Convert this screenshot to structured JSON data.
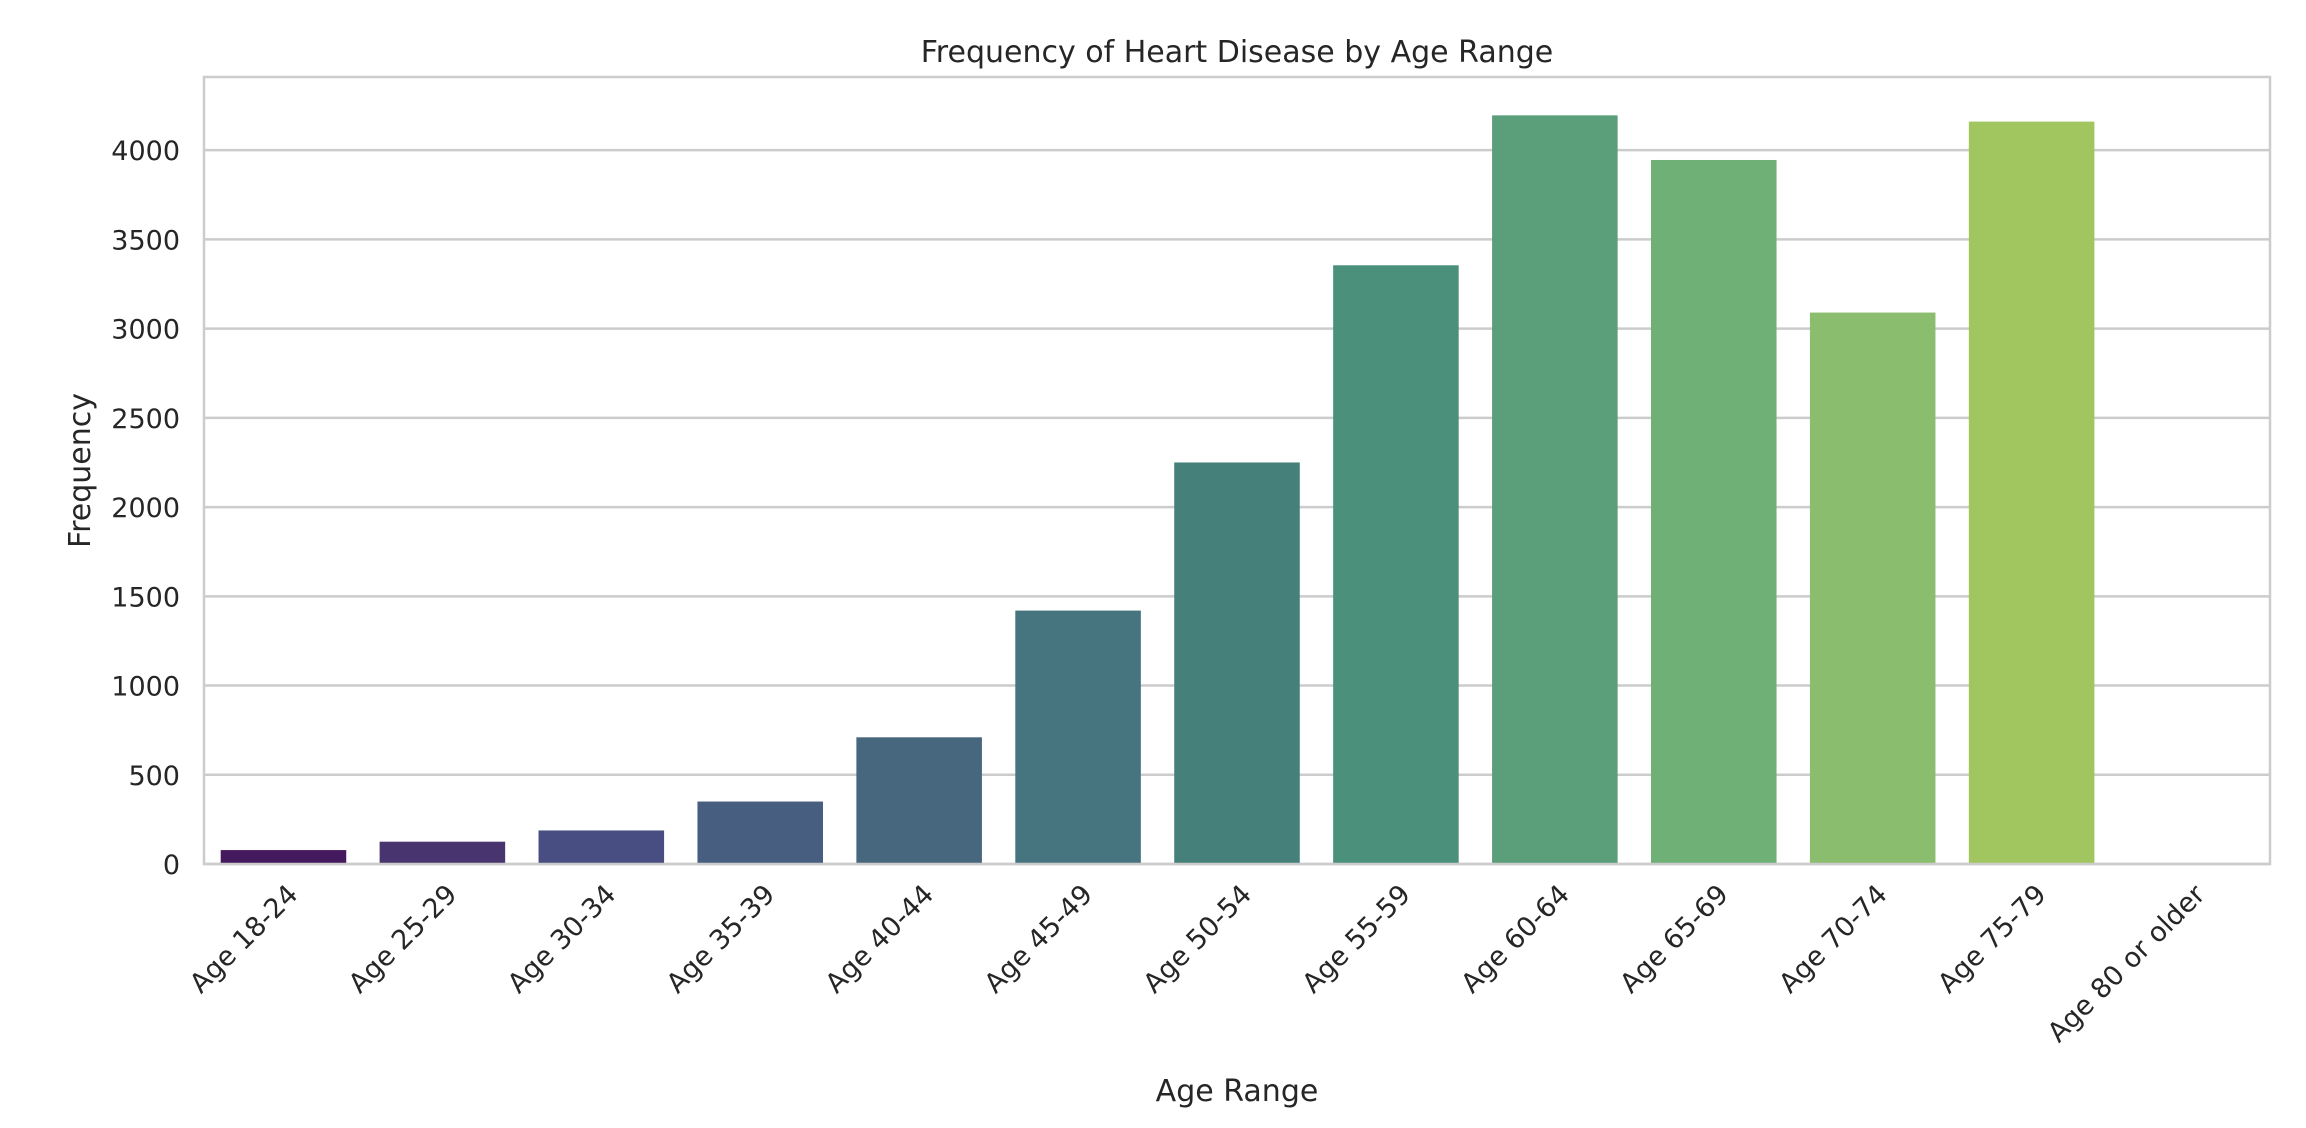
{
  "chart_data": {
    "type": "bar",
    "title": "Frequency of Heart Disease by Age Range",
    "xlabel": "Age Range",
    "ylabel": "Frequency",
    "categories": [
      "Age 18-24",
      "Age 25-29",
      "Age 30-34",
      "Age 35-39",
      "Age 40-44",
      "Age 45-49",
      "Age 50-54",
      "Age 55-59",
      "Age 60-64",
      "Age 65-69",
      "Age 70-74",
      "Age 75-79",
      "Age 80 or older"
    ],
    "values": [
      78,
      125,
      188,
      350,
      710,
      1420,
      2250,
      3355,
      4195,
      3945,
      3090,
      4160,
      0
    ],
    "ylim": [
      0,
      4410
    ],
    "yticks": [
      0,
      500,
      1000,
      1500,
      2000,
      2500,
      3000,
      3500,
      4000
    ],
    "ytick_labels": [
      "0",
      "500",
      "1000",
      "1500",
      "2000",
      "2500",
      "3000",
      "3500",
      "4000"
    ],
    "colors": [
      "#45195e",
      "#48356f",
      "#484e81",
      "#475e80",
      "#47677e",
      "#46747f",
      "#45817a",
      "#4b907a",
      "#5a9e7a",
      "#6fb077",
      "#8bbd6e",
      "#a1c55f",
      "#bcd150"
    ],
    "grid": true,
    "legend": "none"
  }
}
